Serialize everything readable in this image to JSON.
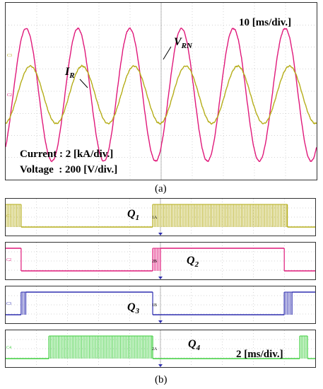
{
  "figure": {
    "caption_a": "(a)",
    "caption_b": "(b)"
  },
  "panel_a": {
    "timebase": "10 [ms/div.]",
    "current_scale": "Current : 2 [kA/div.]",
    "voltage_scale": "Voltage  : 200 [V/div.]",
    "label_vrn": "V",
    "label_vrn_sub": "RN",
    "label_ir": "I",
    "label_ir_sub": "R",
    "ch_marker_top": "C3",
    "ch_marker_bottom": "C2"
  },
  "panel_b": {
    "timebase": "2 [ms/div.]",
    "q1": "Q",
    "q1_sub": "1",
    "q2": "Q",
    "q2_sub": "2",
    "q3": "Q",
    "q3_sub": "3",
    "q4": "Q",
    "q4_sub": "4",
    "trig1": "1A",
    "trig2": "2B",
    "trig3": "1B",
    "trig4": "2A",
    "ch1": "C1",
    "ch2": "C2",
    "ch3": "C3",
    "ch4": "C4"
  },
  "colors": {
    "voltage": "#e0187a",
    "current": "#b5ad18",
    "q1": "#b5ad18",
    "q2": "#e0187a",
    "q3": "#2f2fb0",
    "q4": "#3ecf3e",
    "grid": "#aaaaaa"
  },
  "chart_data": [
    {
      "type": "line",
      "title": "",
      "xlabel": "",
      "ylabel": "",
      "x_units": "ms",
      "x_range": [
        0,
        100
      ],
      "series": [
        {
          "name": "V_RN",
          "kind": "sine",
          "amplitude_div": 3.0,
          "frequency_hz": 60,
          "unit_per_div": "200 V"
        },
        {
          "name": "I_R",
          "kind": "sine",
          "amplitude_div": 1.3,
          "frequency_hz": 60,
          "phase_lag_deg": 30,
          "unit_per_div": "2 kA"
        }
      ],
      "grid": true
    },
    {
      "type": "line",
      "title": "",
      "x_units": "ms",
      "x_range": [
        0,
        20
      ],
      "series": [
        {
          "name": "Q1",
          "states": [
            [
              0,
              1.0,
              "pwm"
            ],
            [
              1.0,
              9.5,
              "low"
            ],
            [
              9.5,
              18.2,
              "pwm"
            ],
            [
              18.2,
              20,
              "low"
            ]
          ]
        },
        {
          "name": "Q2",
          "states": [
            [
              0,
              1.0,
              "high"
            ],
            [
              1.0,
              9.5,
              "low"
            ],
            [
              9.5,
              10.0,
              "pwm"
            ],
            [
              10.0,
              18.0,
              "high"
            ],
            [
              18.0,
              20,
              "low"
            ]
          ]
        },
        {
          "name": "Q3",
          "states": [
            [
              0,
              1.0,
              "low"
            ],
            [
              1.0,
              1.3,
              "pwm"
            ],
            [
              1.3,
              9.5,
              "high"
            ],
            [
              9.5,
              18.0,
              "low"
            ],
            [
              18.0,
              18.5,
              "pwm"
            ],
            [
              18.5,
              20,
              "high"
            ]
          ]
        },
        {
          "name": "Q4",
          "states": [
            [
              0,
              2.8,
              "low"
            ],
            [
              2.8,
              9.5,
              "pwm"
            ],
            [
              9.5,
              19.0,
              "low"
            ],
            [
              19.0,
              19.5,
              "pwm"
            ],
            [
              19.5,
              20,
              "low"
            ]
          ]
        }
      ],
      "grid": true
    }
  ]
}
